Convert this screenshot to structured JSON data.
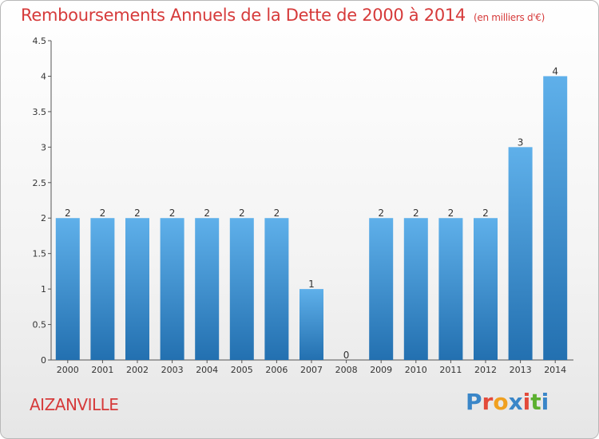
{
  "title": "Remboursements Annuels de la Dette de 2000 à 2014",
  "unit": "(en milliers d'€)",
  "commune": "AIZANVILLE",
  "logo": {
    "text": "Proxiti",
    "colors": [
      "#3a86c8",
      "#e34a3a",
      "#f0a020",
      "#3a86c8",
      "#e34a3a",
      "#5cb030",
      "#3a86c8"
    ]
  },
  "colors": {
    "title": "#d63a3a",
    "bar_top": "#5fb0ea",
    "bar_bottom": "#2370b0"
  },
  "chart_data": {
    "type": "bar",
    "categories": [
      "2000",
      "2001",
      "2002",
      "2003",
      "2004",
      "2005",
      "2006",
      "2007",
      "2008",
      "2009",
      "2010",
      "2011",
      "2012",
      "2013",
      "2014"
    ],
    "values": [
      2,
      2,
      2,
      2,
      2,
      2,
      2,
      1,
      0,
      2,
      2,
      2,
      2,
      3,
      4
    ],
    "data_labels": [
      "2",
      "2",
      "2",
      "2",
      "2",
      "2",
      "2",
      "1",
      "0",
      "2",
      "2",
      "2",
      "2",
      "3",
      "4"
    ],
    "ylim": [
      0,
      4.5
    ],
    "yticks": [
      "0",
      "0.5",
      "1",
      "1.5",
      "2",
      "2.5",
      "3",
      "3.5",
      "4",
      "4.5"
    ],
    "grid": false
  }
}
